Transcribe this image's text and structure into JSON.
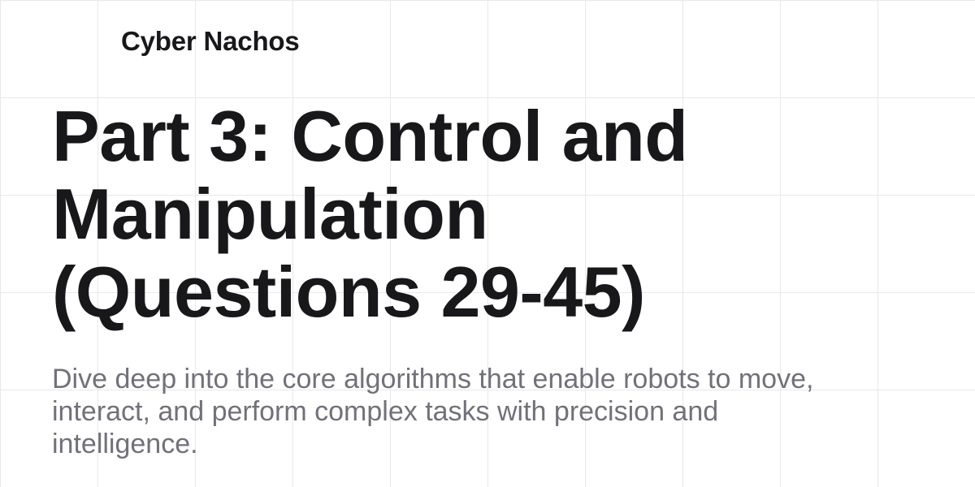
{
  "brand": {
    "name": "Cyber Nachos"
  },
  "title": {
    "lines": [
      "Part 3: Control and",
      "Manipulation",
      "(Questions 29-45)"
    ]
  },
  "subtitle": {
    "lines": [
      "Dive deep into the core algorithms that enable robots to move,",
      "interact, and perform complex tasks with precision and",
      "intelligence."
    ]
  },
  "colors": {
    "background": "#ffffff",
    "grid": "#e8e8e8",
    "heading": "#18181b",
    "body_text": "#71717a"
  }
}
